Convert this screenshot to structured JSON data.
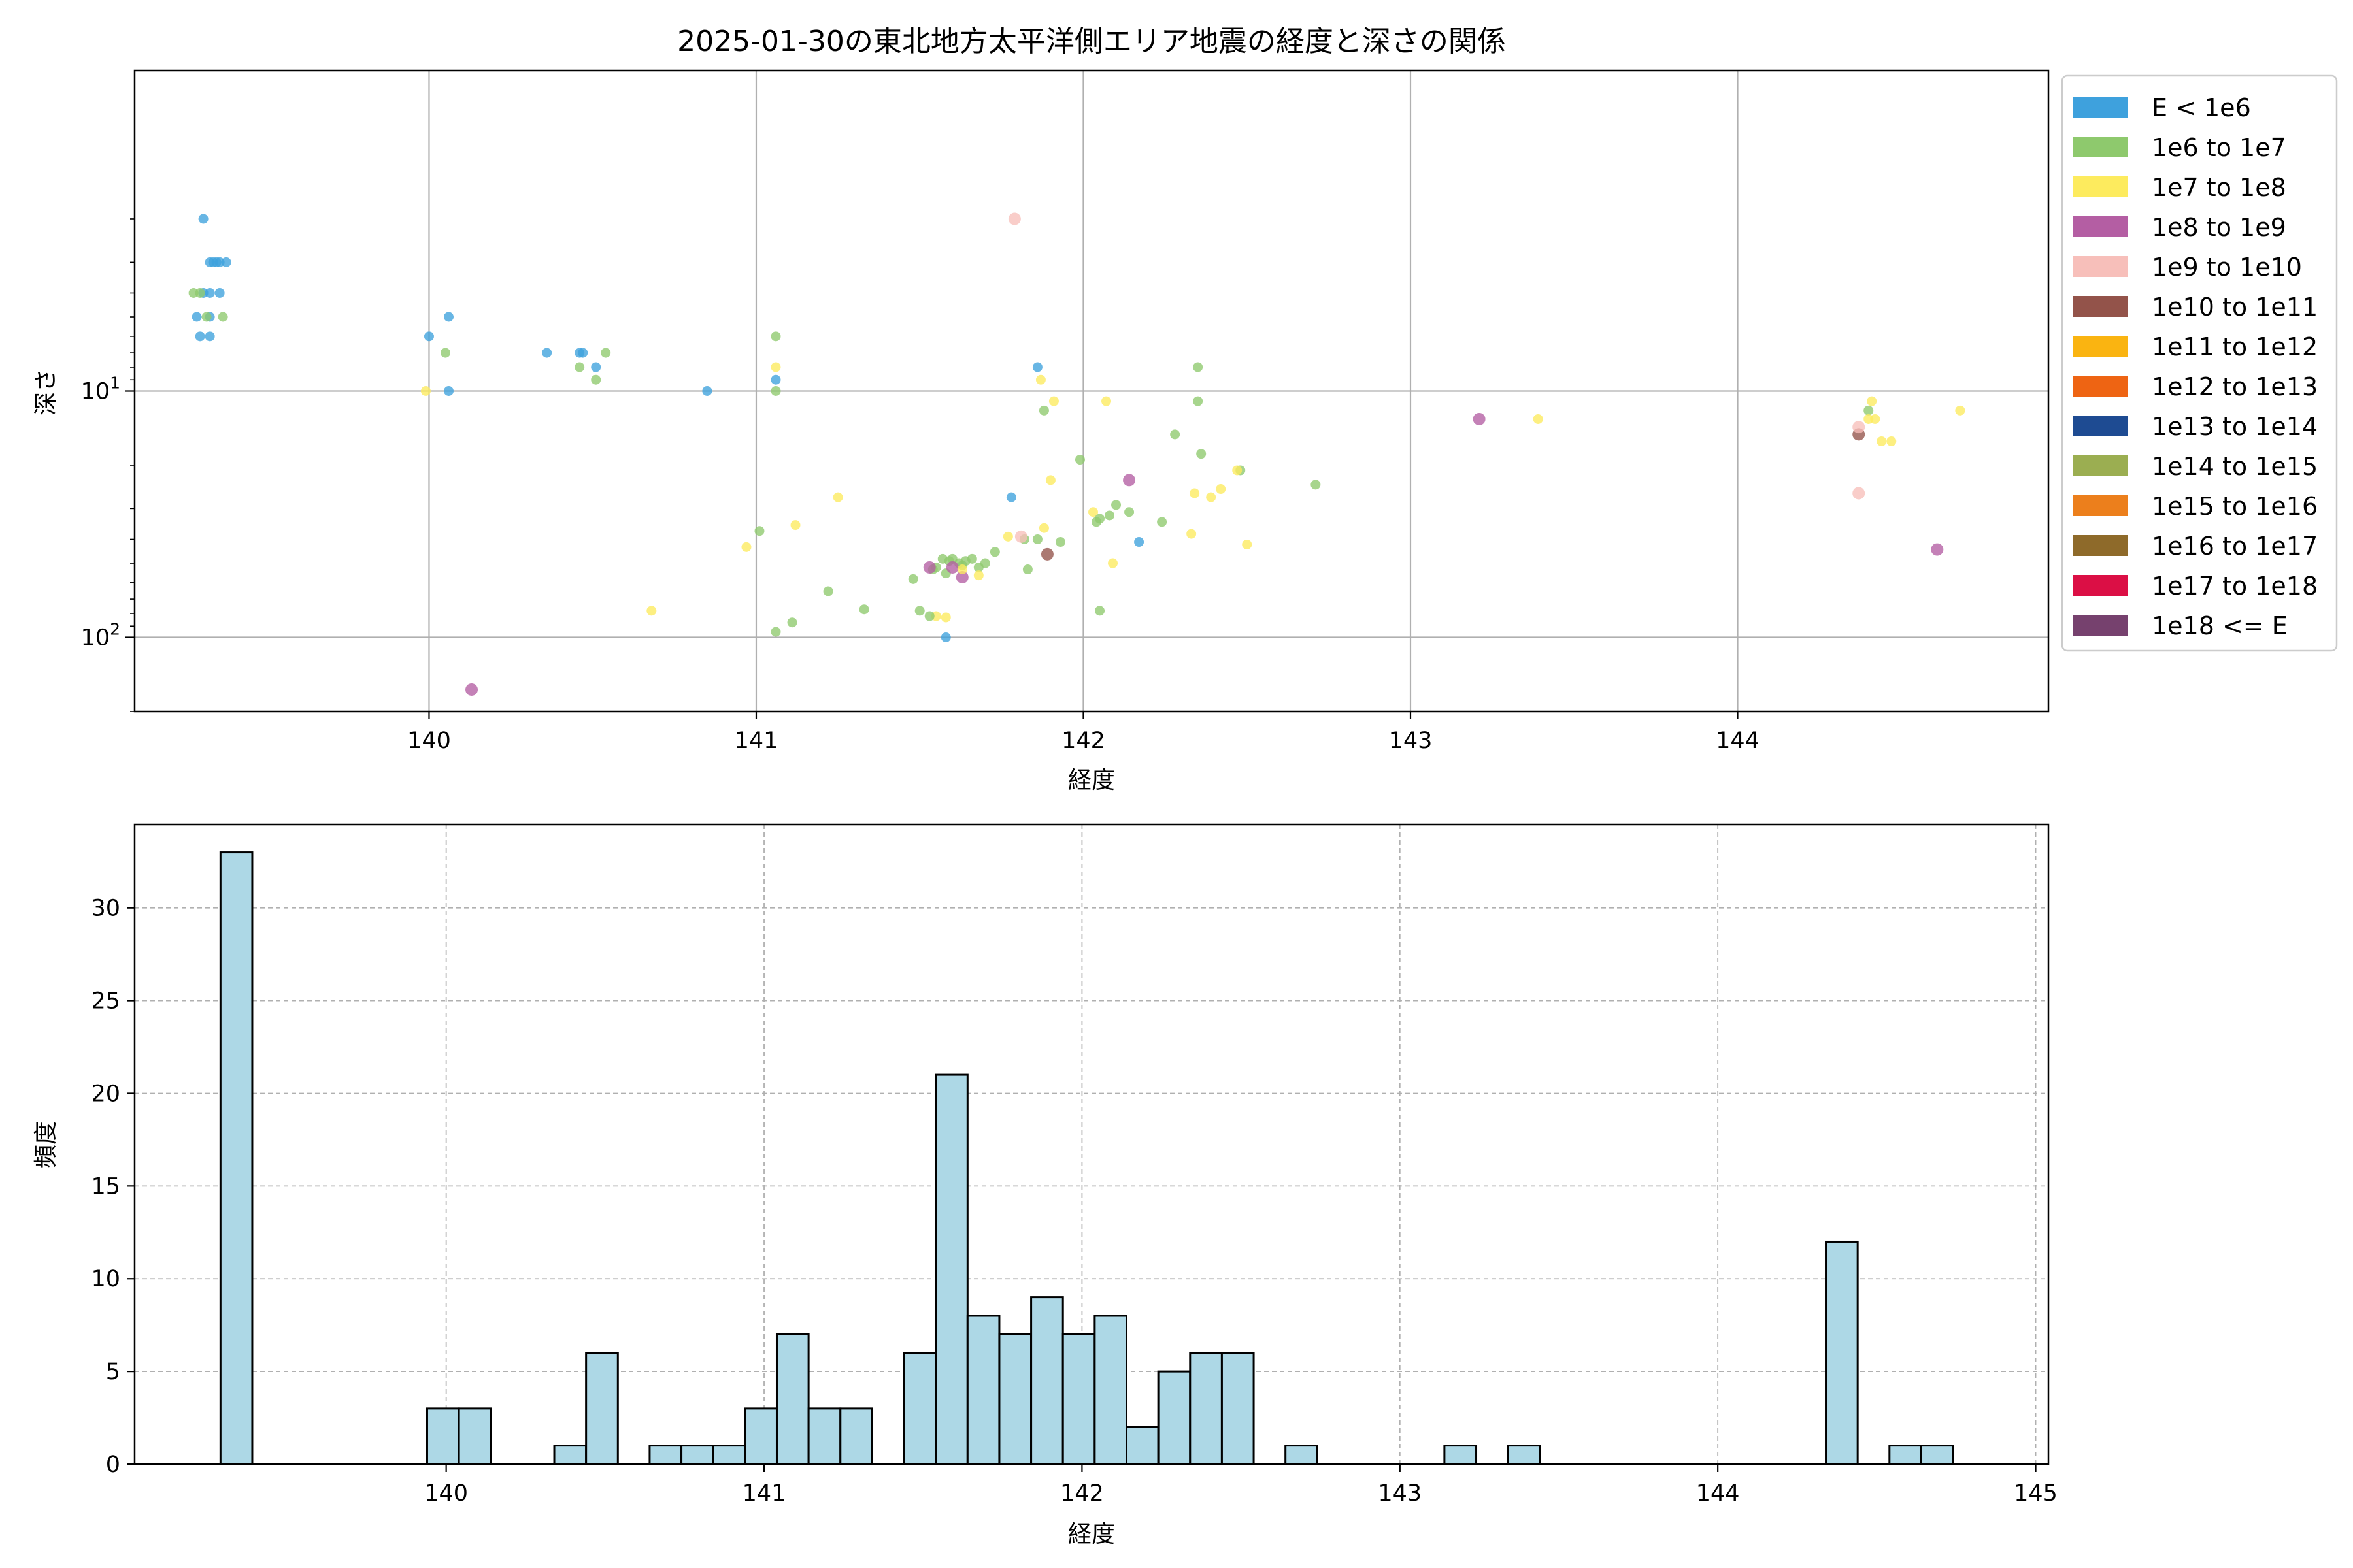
{
  "chart_data": [
    {
      "type": "scatter",
      "title": "2025-01-30の東北地方太平洋側エリア地震の経度と深さの関係",
      "xlabel": "経度",
      "ylabel": "深さ",
      "xlim": [
        139.1,
        144.95
      ],
      "ylim": [
        200,
        0.5
      ],
      "y_scale": "log-inverted",
      "x_ticks": [
        {
          "v": 140,
          "l": "140"
        },
        {
          "v": 141,
          "l": "141"
        },
        {
          "v": 142,
          "l": "142"
        },
        {
          "v": 143,
          "l": "143"
        },
        {
          "v": 144,
          "l": "144"
        }
      ],
      "y_ticks": [
        {
          "v": 10,
          "l": "10",
          "e": "1"
        },
        {
          "v": 100,
          "l": "10",
          "e": "2"
        }
      ],
      "grid": true,
      "legend_position": "outside-right",
      "legend": [
        {
          "label": "E < 1e6",
          "color": "#3ea1dd"
        },
        {
          "label": "1e6 to 1e7",
          "color": "#8ec96d"
        },
        {
          "label": "1e7 to 1e8",
          "color": "#fdeb5e"
        },
        {
          "label": "1e8 to 1e9",
          "color": "#b45ea3"
        },
        {
          "label": "1e9 to 1e10",
          "color": "#f7bfba"
        },
        {
          "label": "1e10 to 1e11",
          "color": "#93534a"
        },
        {
          "label": "1e11 to 1e12",
          "color": "#fab411"
        },
        {
          "label": "1e12 to 1e13",
          "color": "#ee6413"
        },
        {
          "label": "1e13 to 1e14",
          "color": "#1e4b92"
        },
        {
          "label": "1e14 to 1e15",
          "color": "#9bae51"
        },
        {
          "label": "1e15 to 1e16",
          "color": "#ec7f1c"
        },
        {
          "label": "1e16 to 1e17",
          "color": "#8e6a2a"
        },
        {
          "label": "1e17 to 1e18",
          "color": "#db0f45"
        },
        {
          "label": "1e18 <= E",
          "color": "#76416e"
        }
      ],
      "points": [
        {
          "x": 139.31,
          "y": 2,
          "c": 0
        },
        {
          "x": 139.33,
          "y": 3,
          "c": 0
        },
        {
          "x": 139.34,
          "y": 3,
          "c": 0
        },
        {
          "x": 139.35,
          "y": 3,
          "c": 0
        },
        {
          "x": 139.36,
          "y": 3,
          "c": 0
        },
        {
          "x": 139.38,
          "y": 3,
          "c": 0
        },
        {
          "x": 139.31,
          "y": 4,
          "c": 0
        },
        {
          "x": 139.33,
          "y": 4,
          "c": 0
        },
        {
          "x": 139.36,
          "y": 4,
          "c": 0
        },
        {
          "x": 139.29,
          "y": 5,
          "c": 0
        },
        {
          "x": 139.33,
          "y": 5,
          "c": 0
        },
        {
          "x": 139.3,
          "y": 6,
          "c": 0
        },
        {
          "x": 139.33,
          "y": 6,
          "c": 0
        },
        {
          "x": 139.28,
          "y": 4,
          "c": 1
        },
        {
          "x": 139.3,
          "y": 4,
          "c": 1
        },
        {
          "x": 139.32,
          "y": 5,
          "c": 1
        },
        {
          "x": 139.37,
          "y": 5,
          "c": 1
        },
        {
          "x": 140.0,
          "y": 6,
          "c": 0
        },
        {
          "x": 140.06,
          "y": 5,
          "c": 0
        },
        {
          "x": 140.06,
          "y": 10,
          "c": 0
        },
        {
          "x": 140.05,
          "y": 7,
          "c": 1
        },
        {
          "x": 139.99,
          "y": 10,
          "c": 2
        },
        {
          "x": 140.36,
          "y": 7,
          "c": 0
        },
        {
          "x": 140.46,
          "y": 7,
          "c": 0
        },
        {
          "x": 140.47,
          "y": 7,
          "c": 0
        },
        {
          "x": 140.51,
          "y": 8,
          "c": 0
        },
        {
          "x": 140.46,
          "y": 8,
          "c": 1
        },
        {
          "x": 140.51,
          "y": 9,
          "c": 1
        },
        {
          "x": 140.54,
          "y": 7,
          "c": 1
        },
        {
          "x": 140.85,
          "y": 10,
          "c": 0
        },
        {
          "x": 140.68,
          "y": 78,
          "c": 2
        },
        {
          "x": 140.13,
          "y": 163,
          "c": 3
        },
        {
          "x": 141.06,
          "y": 9,
          "c": 0
        },
        {
          "x": 141.06,
          "y": 6,
          "c": 1
        },
        {
          "x": 141.06,
          "y": 10,
          "c": 1
        },
        {
          "x": 141.06,
          "y": 8,
          "c": 2
        },
        {
          "x": 141.01,
          "y": 37,
          "c": 1
        },
        {
          "x": 140.97,
          "y": 43,
          "c": 2
        },
        {
          "x": 141.12,
          "y": 35,
          "c": 2
        },
        {
          "x": 141.25,
          "y": 27,
          "c": 2
        },
        {
          "x": 141.22,
          "y": 65,
          "c": 1
        },
        {
          "x": 141.33,
          "y": 77,
          "c": 1
        },
        {
          "x": 141.06,
          "y": 95,
          "c": 1
        },
        {
          "x": 141.11,
          "y": 87,
          "c": 1
        },
        {
          "x": 141.48,
          "y": 58,
          "c": 1
        },
        {
          "x": 141.5,
          "y": 78,
          "c": 1
        },
        {
          "x": 141.54,
          "y": 53,
          "c": 1
        },
        {
          "x": 141.55,
          "y": 52,
          "c": 1
        },
        {
          "x": 141.57,
          "y": 48,
          "c": 1
        },
        {
          "x": 141.59,
          "y": 49,
          "c": 1
        },
        {
          "x": 141.6,
          "y": 48,
          "c": 1
        },
        {
          "x": 141.62,
          "y": 50,
          "c": 1
        },
        {
          "x": 141.64,
          "y": 49,
          "c": 1
        },
        {
          "x": 141.66,
          "y": 48,
          "c": 1
        },
        {
          "x": 141.68,
          "y": 52,
          "c": 1
        },
        {
          "x": 141.7,
          "y": 50,
          "c": 1
        },
        {
          "x": 141.73,
          "y": 45,
          "c": 1
        },
        {
          "x": 141.58,
          "y": 55,
          "c": 1
        },
        {
          "x": 141.63,
          "y": 51,
          "c": 1
        },
        {
          "x": 141.82,
          "y": 40,
          "c": 1
        },
        {
          "x": 141.86,
          "y": 40,
          "c": 1
        },
        {
          "x": 141.93,
          "y": 41,
          "c": 1
        },
        {
          "x": 141.83,
          "y": 53,
          "c": 1
        },
        {
          "x": 141.6,
          "y": 52,
          "c": 3
        },
        {
          "x": 141.53,
          "y": 52,
          "c": 3
        },
        {
          "x": 141.63,
          "y": 57,
          "c": 3
        },
        {
          "x": 141.55,
          "y": 82,
          "c": 2
        },
        {
          "x": 141.58,
          "y": 83,
          "c": 2
        },
        {
          "x": 141.63,
          "y": 53,
          "c": 2
        },
        {
          "x": 141.68,
          "y": 56,
          "c": 2
        },
        {
          "x": 141.77,
          "y": 39,
          "c": 2
        },
        {
          "x": 141.81,
          "y": 39,
          "c": 4
        },
        {
          "x": 141.79,
          "y": 2,
          "c": 4
        },
        {
          "x": 141.88,
          "y": 36,
          "c": 2
        },
        {
          "x": 141.53,
          "y": 82,
          "c": 1
        },
        {
          "x": 141.58,
          "y": 100,
          "c": 0
        },
        {
          "x": 141.78,
          "y": 27,
          "c": 0
        },
        {
          "x": 141.86,
          "y": 8,
          "c": 0
        },
        {
          "x": 142.17,
          "y": 41,
          "c": 0
        },
        {
          "x": 141.89,
          "y": 46,
          "c": 5
        },
        {
          "x": 141.88,
          "y": 12,
          "c": 1
        },
        {
          "x": 141.87,
          "y": 9,
          "c": 2
        },
        {
          "x": 141.91,
          "y": 11,
          "c": 2
        },
        {
          "x": 141.9,
          "y": 23,
          "c": 2
        },
        {
          "x": 141.99,
          "y": 19,
          "c": 1
        },
        {
          "x": 142.07,
          "y": 11,
          "c": 2
        },
        {
          "x": 142.03,
          "y": 31,
          "c": 2
        },
        {
          "x": 142.05,
          "y": 33,
          "c": 1
        },
        {
          "x": 142.04,
          "y": 34,
          "c": 1
        },
        {
          "x": 142.1,
          "y": 29,
          "c": 1
        },
        {
          "x": 142.14,
          "y": 31,
          "c": 1
        },
        {
          "x": 142.08,
          "y": 32,
          "c": 1
        },
        {
          "x": 142.14,
          "y": 23,
          "c": 3
        },
        {
          "x": 142.09,
          "y": 50,
          "c": 2
        },
        {
          "x": 142.05,
          "y": 78,
          "c": 1
        },
        {
          "x": 142.24,
          "y": 34,
          "c": 1
        },
        {
          "x": 142.28,
          "y": 15,
          "c": 1
        },
        {
          "x": 142.35,
          "y": 11,
          "c": 1
        },
        {
          "x": 142.35,
          "y": 8,
          "c": 1
        },
        {
          "x": 142.36,
          "y": 18,
          "c": 1
        },
        {
          "x": 142.48,
          "y": 21,
          "c": 1
        },
        {
          "x": 142.34,
          "y": 26,
          "c": 2
        },
        {
          "x": 142.47,
          "y": 21,
          "c": 2
        },
        {
          "x": 142.42,
          "y": 25,
          "c": 2
        },
        {
          "x": 142.39,
          "y": 27,
          "c": 2
        },
        {
          "x": 142.33,
          "y": 38,
          "c": 2
        },
        {
          "x": 142.5,
          "y": 42,
          "c": 2
        },
        {
          "x": 142.71,
          "y": 24,
          "c": 1
        },
        {
          "x": 143.21,
          "y": 13,
          "c": 3
        },
        {
          "x": 143.39,
          "y": 13,
          "c": 2
        },
        {
          "x": 144.37,
          "y": 15,
          "c": 5
        },
        {
          "x": 144.37,
          "y": 14,
          "c": 4
        },
        {
          "x": 144.4,
          "y": 12,
          "c": 1
        },
        {
          "x": 144.41,
          "y": 11,
          "c": 2
        },
        {
          "x": 144.4,
          "y": 13,
          "c": 2
        },
        {
          "x": 144.42,
          "y": 13,
          "c": 2
        },
        {
          "x": 144.44,
          "y": 16,
          "c": 2
        },
        {
          "x": 144.47,
          "y": 16,
          "c": 2
        },
        {
          "x": 144.37,
          "y": 26,
          "c": 4
        },
        {
          "x": 144.61,
          "y": 44,
          "c": 3
        },
        {
          "x": 144.68,
          "y": 12,
          "c": 2
        }
      ]
    },
    {
      "type": "bar",
      "xlabel": "経度",
      "ylabel": "頻度",
      "xlim": [
        139.02,
        145.04
      ],
      "ylim": [
        0,
        34.5
      ],
      "grid": true,
      "bar_color": "#add8e6",
      "x_ticks": [
        {
          "v": 140,
          "l": "140"
        },
        {
          "v": 141,
          "l": "141"
        },
        {
          "v": 142,
          "l": "142"
        },
        {
          "v": 143,
          "l": "143"
        },
        {
          "v": 144,
          "l": "144"
        },
        {
          "v": 145,
          "l": "145"
        }
      ],
      "y_ticks": [
        {
          "v": 0,
          "l": "0"
        },
        {
          "v": 5,
          "l": "5"
        },
        {
          "v": 10,
          "l": "10"
        },
        {
          "v": 15,
          "l": "15"
        },
        {
          "v": 20,
          "l": "20"
        },
        {
          "v": 25,
          "l": "25"
        },
        {
          "v": 30,
          "l": "30"
        }
      ],
      "bins": [
        {
          "x0": 139.29,
          "x1": 139.39,
          "v": 33
        },
        {
          "x0": 139.94,
          "x1": 140.04,
          "v": 3
        },
        {
          "x0": 140.04,
          "x1": 140.14,
          "v": 3
        },
        {
          "x0": 140.34,
          "x1": 140.44,
          "v": 1
        },
        {
          "x0": 140.44,
          "x1": 140.54,
          "v": 6
        },
        {
          "x0": 140.64,
          "x1": 140.74,
          "v": 1
        },
        {
          "x0": 140.74,
          "x1": 140.84,
          "v": 1
        },
        {
          "x0": 140.84,
          "x1": 140.94,
          "v": 1
        },
        {
          "x0": 140.94,
          "x1": 141.04,
          "v": 3
        },
        {
          "x0": 141.04,
          "x1": 141.14,
          "v": 7
        },
        {
          "x0": 141.14,
          "x1": 141.24,
          "v": 3
        },
        {
          "x0": 141.24,
          "x1": 141.34,
          "v": 3
        },
        {
          "x0": 141.44,
          "x1": 141.54,
          "v": 6
        },
        {
          "x0": 141.54,
          "x1": 141.64,
          "v": 21
        },
        {
          "x0": 141.64,
          "x1": 141.74,
          "v": 8
        },
        {
          "x0": 141.74,
          "x1": 141.84,
          "v": 7
        },
        {
          "x0": 141.84,
          "x1": 141.94,
          "v": 9
        },
        {
          "x0": 141.94,
          "x1": 142.04,
          "v": 7
        },
        {
          "x0": 142.04,
          "x1": 142.14,
          "v": 8
        },
        {
          "x0": 142.14,
          "x1": 142.24,
          "v": 2
        },
        {
          "x0": 142.24,
          "x1": 142.34,
          "v": 5
        },
        {
          "x0": 142.34,
          "x1": 142.44,
          "v": 6
        },
        {
          "x0": 142.44,
          "x1": 142.54,
          "v": 6
        },
        {
          "x0": 142.64,
          "x1": 142.74,
          "v": 1
        },
        {
          "x0": 143.14,
          "x1": 143.24,
          "v": 1
        },
        {
          "x0": 143.34,
          "x1": 143.44,
          "v": 1
        },
        {
          "x0": 144.34,
          "x1": 144.44,
          "v": 12
        },
        {
          "x0": 144.54,
          "x1": 144.64,
          "v": 1
        },
        {
          "x0": 144.64,
          "x1": 144.74,
          "v": 1
        }
      ]
    }
  ]
}
